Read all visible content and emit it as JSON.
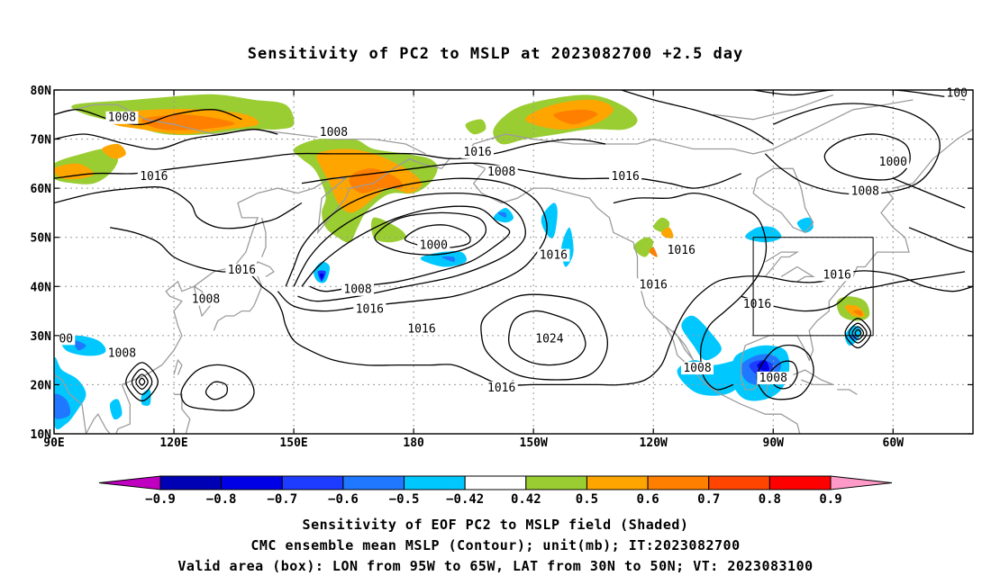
{
  "title": "Sensitivity of PC2 to MSLP at 2023082700 +2.5 day",
  "captions": [
    "Sensitivity of EOF PC2 to MSLP field (Shaded)",
    "CMC ensemble mean MSLP (Contour); unit(mb); IT:2023082700",
    "Valid area (box): LON from 95W to 65W, LAT from 30N to 50N; VT: 2023083100"
  ],
  "map": {
    "lon_labels": [
      "90E",
      "120E",
      "150E",
      "180",
      "150W",
      "120W",
      "90W",
      "60W"
    ],
    "lon_values": [
      90,
      120,
      150,
      180,
      210,
      240,
      270,
      300
    ],
    "lat_labels": [
      "10N",
      "20N",
      "30N",
      "40N",
      "50N",
      "60N",
      "70N",
      "80N"
    ],
    "lat_values": [
      10,
      20,
      30,
      40,
      50,
      60,
      70,
      80
    ],
    "lon_range": [
      90,
      320
    ],
    "lat_range": [
      10,
      80
    ],
    "valid_box": {
      "lon": [
        265,
        295
      ],
      "lat": [
        30,
        50
      ]
    },
    "contour_labels": [
      {
        "text": "1008",
        "lon": 107,
        "lat": 74
      },
      {
        "text": "1008",
        "lon": 160,
        "lat": 71
      },
      {
        "text": "1016",
        "lon": 115,
        "lat": 62
      },
      {
        "text": "1016",
        "lon": 196,
        "lat": 67
      },
      {
        "text": "1008",
        "lon": 202,
        "lat": 63
      },
      {
        "text": "1016",
        "lon": 233,
        "lat": 62
      },
      {
        "text": "1000",
        "lon": 300,
        "lat": 65
      },
      {
        "text": "1008",
        "lon": 293,
        "lat": 59
      },
      {
        "text": "1000",
        "lon": 185,
        "lat": 48
      },
      {
        "text": "1016",
        "lon": 215,
        "lat": 46
      },
      {
        "text": "1016",
        "lon": 247,
        "lat": 47
      },
      {
        "text": "1016",
        "lon": 137,
        "lat": 43
      },
      {
        "text": "1016",
        "lon": 286,
        "lat": 42
      },
      {
        "text": "1008",
        "lon": 166,
        "lat": 39
      },
      {
        "text": "1016",
        "lon": 240,
        "lat": 40
      },
      {
        "text": "1008",
        "lon": 128,
        "lat": 37
      },
      {
        "text": "1016",
        "lon": 169,
        "lat": 35
      },
      {
        "text": "1016",
        "lon": 266,
        "lat": 36
      },
      {
        "text": "00",
        "lon": 93,
        "lat": 29
      },
      {
        "text": "1024",
        "lon": 214,
        "lat": 29
      },
      {
        "text": "1016",
        "lon": 182,
        "lat": 31
      },
      {
        "text": "1008",
        "lon": 107,
        "lat": 26
      },
      {
        "text": "1008",
        "lon": 251,
        "lat": 23
      },
      {
        "text": "1008",
        "lon": 270,
        "lat": 21
      },
      {
        "text": "1016",
        "lon": 202,
        "lat": 19
      },
      {
        "text": "100",
        "lon": 316,
        "lat": 79
      }
    ]
  },
  "colorbar": {
    "labels": [
      "−0.9",
      "−0.8",
      "−0.7",
      "−0.6",
      "−0.5",
      "−0.42",
      "0.42",
      "0.5",
      "0.6",
      "0.7",
      "0.8",
      "0.9"
    ],
    "colors": [
      "#c000c0",
      "#0000b4",
      "#0000e6",
      "#1e3cff",
      "#1f78ff",
      "#00c8ff",
      "#ffffff",
      "#9acd32",
      "#ffa500",
      "#ff7f00",
      "#ff4500",
      "#ff0000",
      "#ff99c8"
    ],
    "label_anchor_boxes": [
      1,
      2,
      3,
      4,
      5,
      6,
      7,
      8,
      9,
      10,
      11,
      12
    ]
  }
}
